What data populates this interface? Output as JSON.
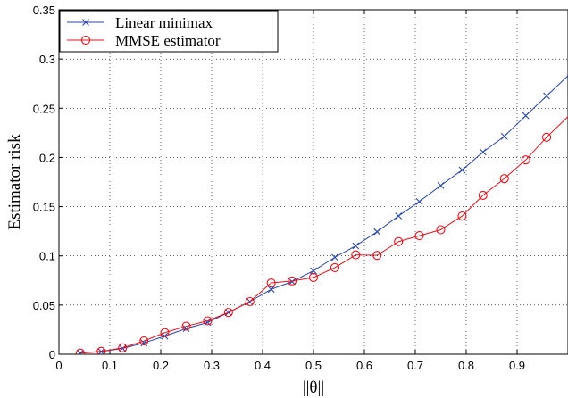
{
  "chart_data": {
    "type": "line",
    "xlabel": "||θ||",
    "ylabel": "Estimator risk",
    "xlim": [
      0,
      1
    ],
    "ylim": [
      0,
      0.35
    ],
    "xticks": [
      "0",
      "0.1",
      "0.2",
      "0.3",
      "0.4",
      "0.5",
      "0.6",
      "0.7",
      "0.8",
      "0.9"
    ],
    "yticks": [
      "0",
      "0.05",
      "0.1",
      "0.15",
      "0.2",
      "0.25",
      "0.3",
      "0.35"
    ],
    "grid": true,
    "legend_position": "top-left",
    "series": [
      {
        "name": "Linear minimax",
        "color": "#2a46a8",
        "marker": "x",
        "x": [
          0.042,
          0.083,
          0.125,
          0.167,
          0.208,
          0.25,
          0.292,
          0.333,
          0.375,
          0.417,
          0.458,
          0.5,
          0.542,
          0.583,
          0.625,
          0.667,
          0.708,
          0.75,
          0.792,
          0.833,
          0.875,
          0.917,
          0.958,
          1.0
        ],
        "y": [
          0.0012,
          0.0027,
          0.0059,
          0.0115,
          0.0185,
          0.0262,
          0.0323,
          0.0425,
          0.0535,
          0.066,
          0.0738,
          0.0848,
          0.0985,
          0.1102,
          0.1245,
          0.1405,
          0.1552,
          0.1715,
          0.1872,
          0.2055,
          0.2215,
          0.2425,
          0.2625,
          0.283
        ]
      },
      {
        "name": "MMSE estimator",
        "color": "#e8101a",
        "marker": "o",
        "x": [
          0.042,
          0.083,
          0.125,
          0.167,
          0.208,
          0.25,
          0.292,
          0.333,
          0.375,
          0.417,
          0.458,
          0.5,
          0.542,
          0.583,
          0.625,
          0.667,
          0.708,
          0.75,
          0.792,
          0.833,
          0.875,
          0.917,
          0.958,
          1.0
        ],
        "y": [
          0.0012,
          0.003,
          0.0065,
          0.0135,
          0.022,
          0.0285,
          0.034,
          0.0425,
          0.0535,
          0.0725,
          0.0745,
          0.078,
          0.088,
          0.101,
          0.1005,
          0.1145,
          0.1205,
          0.1265,
          0.1405,
          0.1615,
          0.1785,
          0.1975,
          0.2205,
          0.2415
        ]
      }
    ]
  }
}
